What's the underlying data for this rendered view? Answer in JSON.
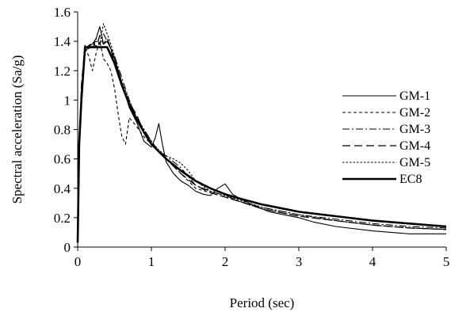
{
  "chart_data": {
    "type": "line",
    "title": "",
    "xlabel": "Period (sec)",
    "ylabel": "Spectral acceleration (Sa/g)",
    "xlim": [
      0,
      5
    ],
    "ylim": [
      0,
      1.6
    ],
    "xticks": [
      0,
      1,
      2,
      3,
      4,
      5
    ],
    "yticks": [
      0,
      0.2,
      0.4,
      0.6,
      0.8,
      1,
      1.2,
      1.4,
      1.6
    ],
    "xtick_labels": [
      "0",
      "1",
      "2",
      "3",
      "4",
      "5"
    ],
    "ytick_labels": [
      "0",
      "0.2",
      "0.4",
      "0.6",
      "0.8",
      "1",
      "1.2",
      "1.4",
      "1.6"
    ],
    "grid": false,
    "legend_position": "right",
    "series": [
      {
        "name": "GM-1",
        "style": "solid-thin",
        "color": "#000000",
        "x": [
          0,
          0.02,
          0.05,
          0.1,
          0.15,
          0.2,
          0.25,
          0.3,
          0.35,
          0.4,
          0.45,
          0.5,
          0.55,
          0.6,
          0.7,
          0.8,
          0.9,
          1.0,
          1.05,
          1.1,
          1.15,
          1.2,
          1.3,
          1.4,
          1.5,
          1.6,
          1.7,
          1.8,
          1.9,
          2.0,
          2.1,
          2.2,
          2.4,
          2.6,
          2.8,
          3.0,
          3.2,
          3.5,
          4.0,
          4.5,
          5.0
        ],
        "y": [
          0.03,
          0.7,
          1.05,
          1.35,
          1.37,
          1.38,
          1.42,
          1.5,
          1.38,
          1.4,
          1.35,
          1.28,
          1.2,
          1.12,
          0.95,
          0.85,
          0.72,
          0.68,
          0.74,
          0.84,
          0.7,
          0.58,
          0.5,
          0.45,
          0.42,
          0.38,
          0.36,
          0.35,
          0.4,
          0.43,
          0.36,
          0.33,
          0.28,
          0.24,
          0.22,
          0.2,
          0.17,
          0.14,
          0.11,
          0.09,
          0.09
        ]
      },
      {
        "name": "GM-2",
        "style": "dashed",
        "color": "#000000",
        "x": [
          0,
          0.02,
          0.05,
          0.1,
          0.15,
          0.2,
          0.25,
          0.3,
          0.35,
          0.4,
          0.45,
          0.5,
          0.55,
          0.6,
          0.65,
          0.7,
          0.8,
          0.9,
          1.0,
          1.1,
          1.2,
          1.3,
          1.4,
          1.5,
          1.6,
          1.8,
          2.0,
          2.2,
          2.5,
          2.8,
          3.0,
          3.5,
          4.0,
          4.5,
          5.0
        ],
        "y": [
          0.03,
          0.7,
          1.0,
          1.35,
          1.3,
          1.2,
          1.32,
          1.4,
          1.28,
          1.25,
          1.2,
          1.08,
          0.9,
          0.75,
          0.7,
          0.88,
          0.82,
          0.75,
          0.7,
          0.65,
          0.6,
          0.55,
          0.5,
          0.45,
          0.4,
          0.37,
          0.34,
          0.31,
          0.26,
          0.23,
          0.21,
          0.18,
          0.15,
          0.13,
          0.12
        ]
      },
      {
        "name": "GM-3",
        "style": "dash-dot",
        "color": "#000000",
        "x": [
          0,
          0.02,
          0.05,
          0.1,
          0.15,
          0.2,
          0.25,
          0.3,
          0.35,
          0.4,
          0.5,
          0.6,
          0.7,
          0.8,
          0.9,
          1.0,
          1.1,
          1.2,
          1.3,
          1.4,
          1.5,
          1.6,
          1.8,
          2.0,
          2.2,
          2.5,
          2.8,
          3.0,
          3.5,
          4.0,
          4.5,
          5.0
        ],
        "y": [
          0.03,
          0.7,
          1.05,
          1.33,
          1.36,
          1.35,
          1.42,
          1.38,
          1.45,
          1.4,
          1.3,
          1.15,
          1.0,
          0.88,
          0.8,
          0.72,
          0.65,
          0.62,
          0.58,
          0.54,
          0.48,
          0.42,
          0.38,
          0.35,
          0.31,
          0.27,
          0.24,
          0.22,
          0.19,
          0.16,
          0.14,
          0.13
        ]
      },
      {
        "name": "GM-4",
        "style": "long-dash",
        "color": "#000000",
        "x": [
          0,
          0.02,
          0.05,
          0.1,
          0.15,
          0.2,
          0.25,
          0.3,
          0.35,
          0.4,
          0.45,
          0.5,
          0.6,
          0.7,
          0.8,
          0.9,
          1.0,
          1.1,
          1.2,
          1.3,
          1.4,
          1.5,
          1.6,
          1.8,
          2.0,
          2.2,
          2.5,
          2.8,
          3.0,
          3.5,
          4.0,
          4.5,
          5.0
        ],
        "y": [
          0.03,
          0.72,
          1.1,
          1.38,
          1.35,
          1.4,
          1.36,
          1.44,
          1.38,
          1.42,
          1.35,
          1.25,
          1.1,
          0.98,
          0.9,
          0.78,
          0.7,
          0.65,
          0.6,
          0.55,
          0.5,
          0.46,
          0.42,
          0.37,
          0.34,
          0.31,
          0.26,
          0.23,
          0.21,
          0.18,
          0.15,
          0.13,
          0.12
        ]
      },
      {
        "name": "GM-5",
        "style": "short-dash",
        "color": "#000000",
        "x": [
          0,
          0.02,
          0.05,
          0.1,
          0.15,
          0.2,
          0.25,
          0.3,
          0.35,
          0.4,
          0.45,
          0.5,
          0.6,
          0.7,
          0.8,
          0.9,
          1.0,
          1.1,
          1.2,
          1.3,
          1.4,
          1.5,
          1.6,
          1.8,
          2.0,
          2.2,
          2.5,
          2.8,
          3.0,
          3.5,
          4.0,
          4.5,
          5.0
        ],
        "y": [
          0.03,
          0.7,
          1.08,
          1.32,
          1.38,
          1.36,
          1.4,
          1.38,
          1.52,
          1.45,
          1.38,
          1.3,
          1.12,
          1.0,
          0.88,
          0.8,
          0.72,
          0.66,
          0.62,
          0.6,
          0.57,
          0.52,
          0.45,
          0.38,
          0.35,
          0.32,
          0.27,
          0.24,
          0.22,
          0.18,
          0.15,
          0.13,
          0.12
        ]
      },
      {
        "name": "EC8",
        "style": "solid-thick",
        "color": "#000000",
        "x": [
          0,
          0.02,
          0.05,
          0.1,
          0.15,
          0.2,
          0.3,
          0.4,
          0.5,
          0.6,
          0.7,
          0.8,
          0.9,
          1.0,
          1.2,
          1.4,
          1.6,
          1.8,
          2.0,
          2.2,
          2.5,
          2.8,
          3.0,
          3.5,
          4.0,
          4.5,
          5.0
        ],
        "y": [
          0.03,
          0.7,
          1.0,
          1.36,
          1.36,
          1.36,
          1.36,
          1.36,
          1.25,
          1.1,
          0.97,
          0.87,
          0.78,
          0.7,
          0.6,
          0.52,
          0.45,
          0.4,
          0.36,
          0.33,
          0.29,
          0.26,
          0.24,
          0.21,
          0.18,
          0.16,
          0.14
        ]
      }
    ]
  }
}
